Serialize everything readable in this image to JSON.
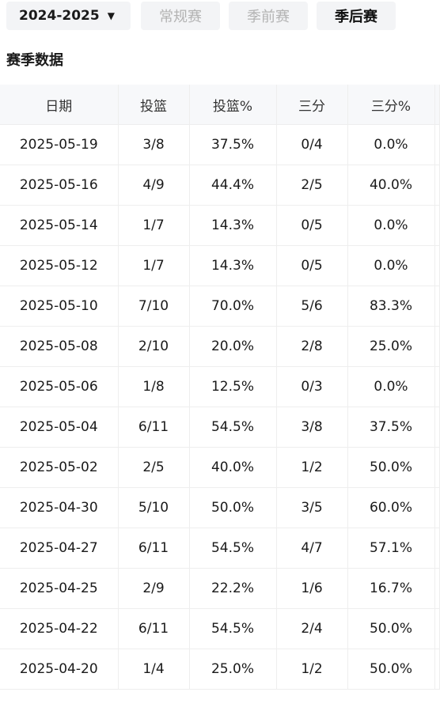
{
  "filters": {
    "season_label": "2024-2025",
    "tabs": [
      {
        "label": "常规赛",
        "active": false
      },
      {
        "label": "季前赛",
        "active": false
      },
      {
        "label": "季后赛",
        "active": true
      }
    ]
  },
  "section": {
    "title": "赛季数据"
  },
  "table": {
    "columns": [
      "日期",
      "投篮",
      "投篮%",
      "三分",
      "三分%"
    ],
    "rows": [
      [
        "2025-05-19",
        "3/8",
        "37.5%",
        "0/4",
        "0.0%"
      ],
      [
        "2025-05-16",
        "4/9",
        "44.4%",
        "2/5",
        "40.0%"
      ],
      [
        "2025-05-14",
        "1/7",
        "14.3%",
        "0/5",
        "0.0%"
      ],
      [
        "2025-05-12",
        "1/7",
        "14.3%",
        "0/5",
        "0.0%"
      ],
      [
        "2025-05-10",
        "7/10",
        "70.0%",
        "5/6",
        "83.3%"
      ],
      [
        "2025-05-08",
        "2/10",
        "20.0%",
        "2/8",
        "25.0%"
      ],
      [
        "2025-05-06",
        "1/8",
        "12.5%",
        "0/3",
        "0.0%"
      ],
      [
        "2025-05-04",
        "6/11",
        "54.5%",
        "3/8",
        "37.5%"
      ],
      [
        "2025-05-02",
        "2/5",
        "40.0%",
        "1/2",
        "50.0%"
      ],
      [
        "2025-04-30",
        "5/10",
        "50.0%",
        "3/5",
        "60.0%"
      ],
      [
        "2025-04-27",
        "6/11",
        "54.5%",
        "4/7",
        "57.1%"
      ],
      [
        "2025-04-25",
        "2/9",
        "22.2%",
        "1/6",
        "16.7%"
      ],
      [
        "2025-04-22",
        "6/11",
        "54.5%",
        "2/4",
        "50.0%"
      ],
      [
        "2025-04-20",
        "1/4",
        "25.0%",
        "1/2",
        "50.0%"
      ]
    ]
  }
}
